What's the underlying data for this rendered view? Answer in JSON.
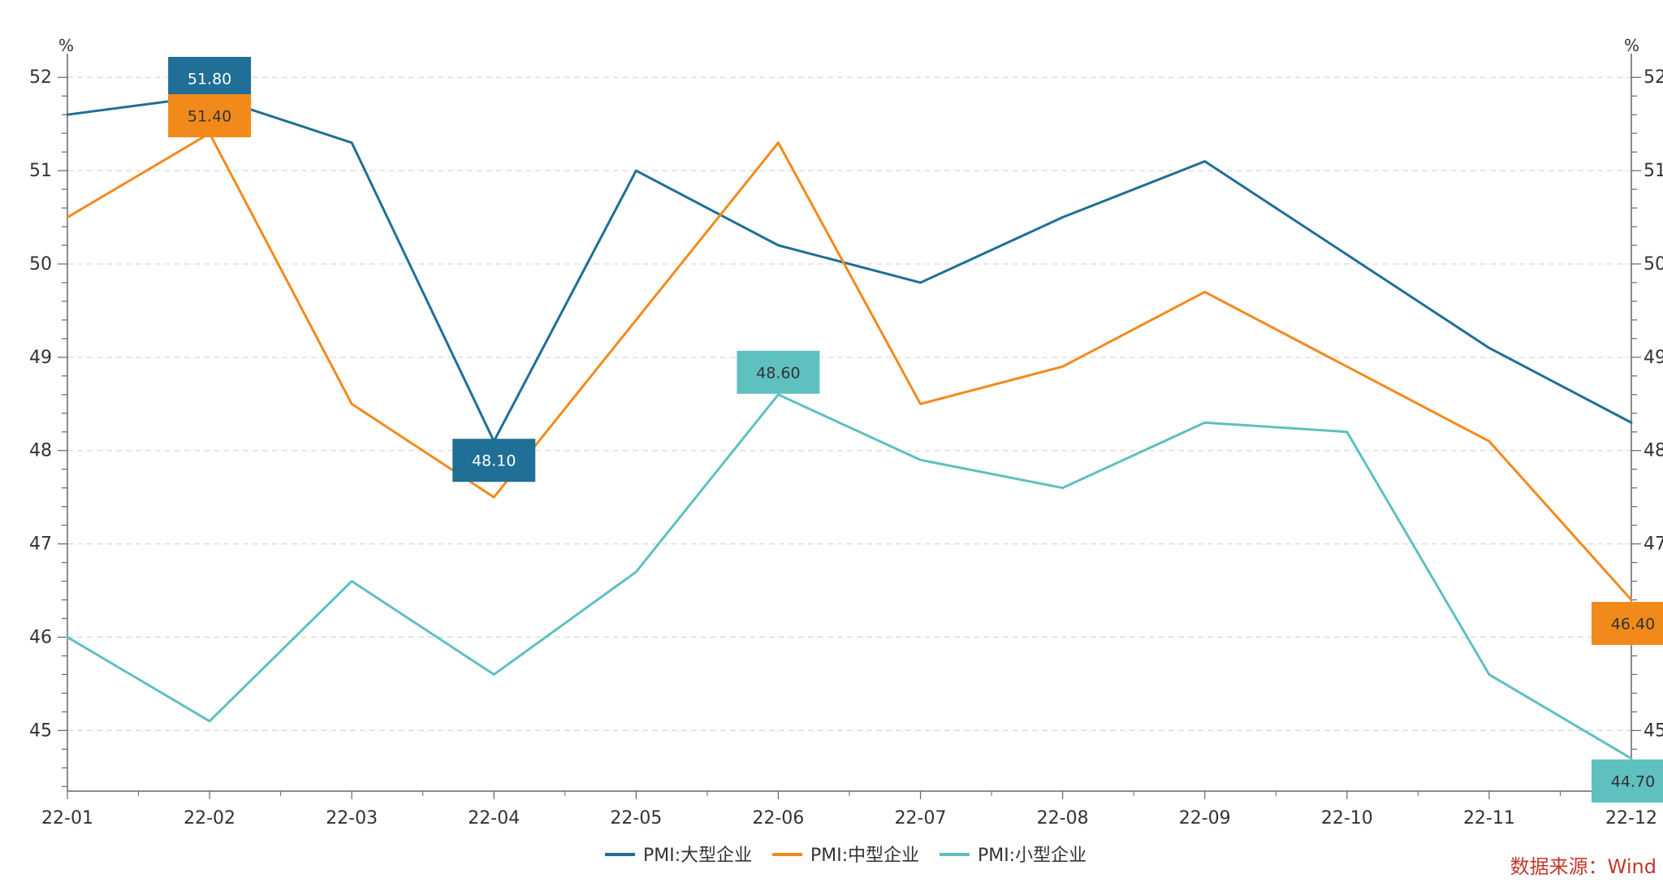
{
  "chart_data": {
    "type": "line",
    "x": [
      "22-01",
      "22-02",
      "22-03",
      "22-04",
      "22-05",
      "22-06",
      "22-07",
      "22-08",
      "22-09",
      "22-10",
      "22-11",
      "22-12"
    ],
    "series": [
      {
        "name": "PMI:大型企业",
        "color": "#1f6f96",
        "values": [
          51.6,
          51.8,
          51.3,
          48.1,
          51.0,
          50.2,
          49.8,
          50.5,
          51.1,
          50.1,
          49.1,
          48.3
        ],
        "labels": [
          {
            "index": 1,
            "text": "51.80"
          },
          {
            "index": 3,
            "text": "48.10"
          }
        ]
      },
      {
        "name": "PMI:中型企业",
        "color": "#f28a1b",
        "values": [
          50.5,
          51.4,
          48.5,
          47.5,
          49.4,
          51.3,
          48.5,
          48.9,
          49.7,
          48.9,
          48.1,
          46.4
        ],
        "labels": [
          {
            "index": 1,
            "text": "51.40"
          },
          {
            "index": 11,
            "text": "46.40"
          }
        ]
      },
      {
        "name": "PMI:小型企业",
        "color": "#5fc0c0",
        "values": [
          46.0,
          45.1,
          46.6,
          45.6,
          46.7,
          48.6,
          47.9,
          47.6,
          48.3,
          48.2,
          45.6,
          44.7
        ],
        "labels": [
          {
            "index": 5,
            "text": "48.60"
          },
          {
            "index": 11,
            "text": "44.70"
          }
        ]
      }
    ],
    "ylim": [
      44.35,
      52.15
    ],
    "yticks": [
      45,
      46,
      47,
      48,
      49,
      50,
      51,
      52
    ],
    "ylabel_left": "%",
    "ylabel_right": "%",
    "grid": true,
    "legend_position": "bottom-center"
  },
  "source": "数据来源：Wind"
}
